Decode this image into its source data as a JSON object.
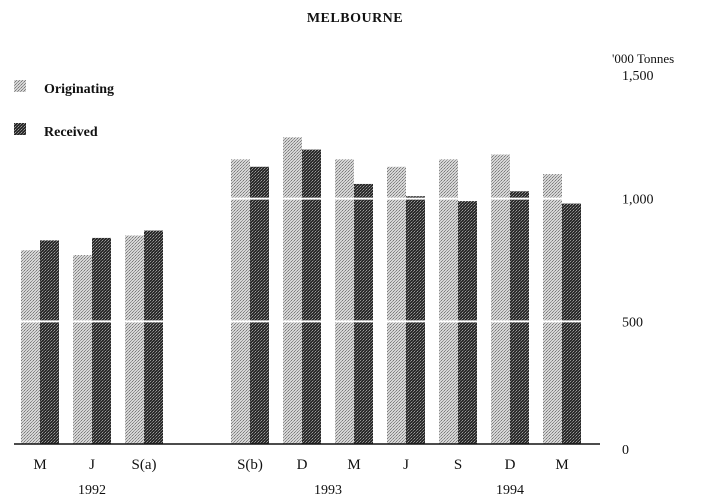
{
  "chart_data": {
    "type": "bar",
    "title": "MELBOURNE",
    "ylabel": "'000 Tonnes",
    "ylim": [
      0,
      1500
    ],
    "yticks": [
      {
        "value": 0,
        "label": "0"
      },
      {
        "value": 500,
        "label": "500"
      },
      {
        "value": 1000,
        "label": "1,000"
      },
      {
        "value": 1500,
        "label": "1,500"
      }
    ],
    "gridlines": "white",
    "legend_position": "top-left",
    "categories": [
      "M",
      "J",
      "S(a)",
      "S(b)",
      "D",
      "M",
      "J",
      "S",
      "D",
      "M"
    ],
    "category_groups": [
      0,
      0,
      0,
      1,
      1,
      1,
      1,
      1,
      1,
      1
    ],
    "years": [
      {
        "label": "1992",
        "first": 0,
        "last": 2
      },
      {
        "label": "1993",
        "first": 3,
        "last": 6
      },
      {
        "label": "1994",
        "first": 7,
        "last": 9
      }
    ],
    "series": [
      {
        "name": "Originating",
        "color": "#b8b8b8",
        "values": [
          790,
          770,
          850,
          1160,
          1250,
          1160,
          1130,
          1160,
          1180,
          1100
        ]
      },
      {
        "name": "Received",
        "color": "#3a3a3a",
        "values": [
          830,
          840,
          870,
          1130,
          1200,
          1060,
          1010,
          990,
          1030,
          980
        ]
      }
    ]
  }
}
